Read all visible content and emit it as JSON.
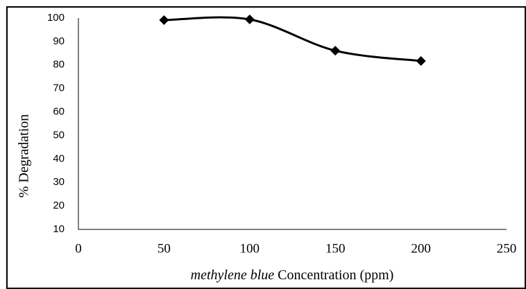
{
  "chart_data": {
    "type": "line",
    "x_label": [
      "methylene blue",
      "Concentration (ppm)"
    ],
    "y_label": "% Degradation",
    "x": [
      50,
      100,
      150,
      200
    ],
    "series": [
      {
        "name": "% Degradation",
        "color": "#000000",
        "values": [
          99.1,
          99.4,
          86.1,
          81.7
        ]
      }
    ],
    "xlim": [
      0,
      250
    ],
    "xticks": [
      0,
      50,
      100,
      150,
      200,
      250
    ],
    "ylim": [
      10,
      100
    ],
    "yticks": [
      10,
      20,
      30,
      40,
      50,
      60,
      70,
      80,
      90,
      100
    ],
    "grid": false,
    "smooth": true,
    "marker": "diamond"
  }
}
